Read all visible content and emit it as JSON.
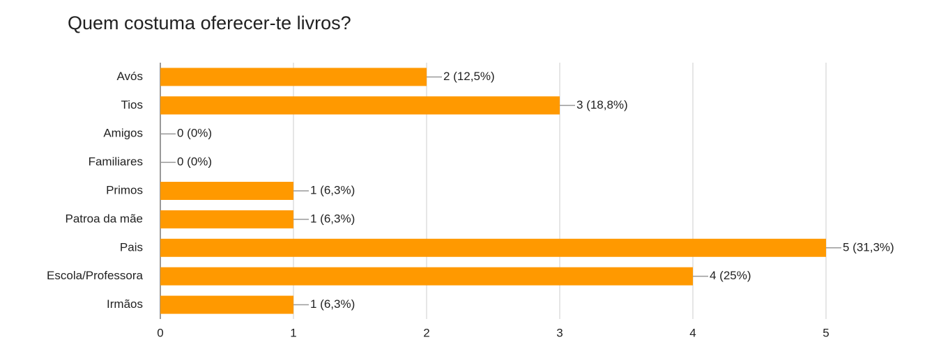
{
  "chart_data": {
    "type": "bar",
    "orientation": "horizontal",
    "title": "Quem costuma oferecer-te livros?",
    "categories": [
      "Avós",
      "Tios",
      "Amigos",
      "Familiares",
      "Primos",
      "Patroa da mãe",
      "Pais",
      "Escola/Professora",
      "Irmãos"
    ],
    "values": [
      2,
      3,
      0,
      0,
      1,
      1,
      5,
      4,
      1
    ],
    "value_labels": [
      "2 (12,5%)",
      "3 (18,8%)",
      "0 (0%)",
      "0 (0%)",
      "1 (6,3%)",
      "1 (6,3%)",
      "5 (31,3%)",
      "4 (25%)",
      "1 (6,3%)"
    ],
    "color": "#ff9900",
    "xlim": [
      0,
      5
    ],
    "xticks": [
      0,
      1,
      2,
      3,
      4,
      5
    ],
    "grid": true
  }
}
